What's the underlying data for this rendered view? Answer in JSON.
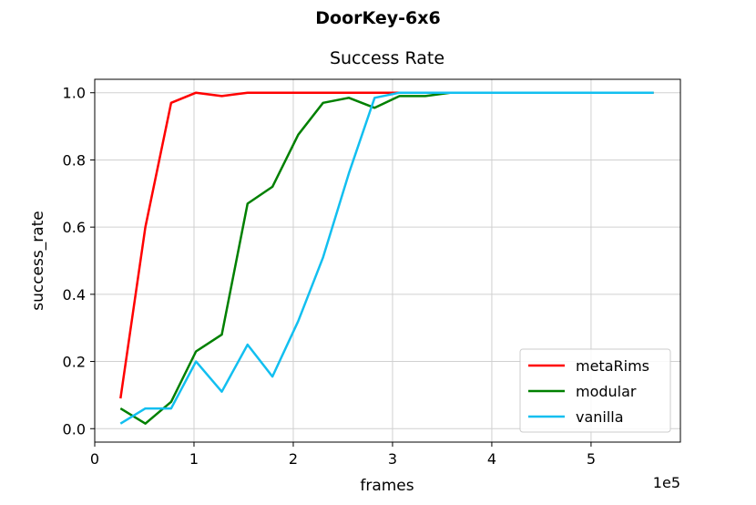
{
  "suptitle": "DoorKey-6x6",
  "chart_data": {
    "type": "line",
    "title": "Success Rate",
    "xlabel": "frames",
    "ylabel": "success_rate",
    "x_offset_text": "1e5",
    "xlim": [
      0,
      5.9
    ],
    "ylim": [
      -0.04,
      1.04
    ],
    "xticks": [
      0,
      1,
      2,
      3,
      4,
      5
    ],
    "xtick_labels": [
      "0",
      "1",
      "2",
      "3",
      "4",
      "5"
    ],
    "yticks": [
      0.0,
      0.2,
      0.4,
      0.6,
      0.8,
      1.0
    ],
    "ytick_labels": [
      "0.0",
      "0.2",
      "0.4",
      "0.6",
      "0.8",
      "1.0"
    ],
    "grid": true,
    "legend_position": "lower-right",
    "series": [
      {
        "name": "metaRims",
        "color": "#ff0000",
        "x": [
          0.26,
          0.51,
          0.77,
          1.02,
          1.28,
          1.54,
          1.79,
          2.05,
          2.3,
          2.56,
          2.82,
          3.07,
          3.33,
          3.58,
          3.84,
          4.1,
          4.35,
          4.61,
          4.86,
          5.12,
          5.38,
          5.63
        ],
        "y": [
          0.09,
          0.6,
          0.97,
          1.0,
          0.99,
          1.0,
          1.0,
          1.0,
          1.0,
          1.0,
          1.0,
          1.0,
          1.0,
          1.0,
          1.0,
          1.0,
          1.0,
          1.0,
          1.0,
          1.0,
          1.0,
          1.0
        ]
      },
      {
        "name": "modular",
        "color": "#008000",
        "x": [
          0.26,
          0.51,
          0.77,
          1.02,
          1.28,
          1.54,
          1.79,
          2.05,
          2.3,
          2.56,
          2.82,
          3.07,
          3.33,
          3.58,
          3.84,
          4.1,
          4.35,
          4.61,
          4.86,
          5.12,
          5.38,
          5.63
        ],
        "y": [
          0.06,
          0.015,
          0.08,
          0.23,
          0.28,
          0.67,
          0.72,
          0.875,
          0.97,
          0.985,
          0.955,
          0.99,
          0.99,
          1.0,
          1.0,
          1.0,
          1.0,
          1.0,
          1.0,
          1.0,
          1.0,
          1.0
        ]
      },
      {
        "name": "vanilla",
        "color": "#12bff0",
        "x": [
          0.26,
          0.51,
          0.77,
          1.02,
          1.28,
          1.54,
          1.79,
          2.05,
          2.3,
          2.56,
          2.82,
          3.07,
          3.33,
          3.58,
          3.84,
          4.1,
          4.35,
          4.61,
          4.86,
          5.12,
          5.38,
          5.63
        ],
        "y": [
          0.015,
          0.06,
          0.06,
          0.2,
          0.11,
          0.25,
          0.155,
          0.32,
          0.51,
          0.76,
          0.985,
          1.0,
          1.0,
          1.0,
          1.0,
          1.0,
          1.0,
          1.0,
          1.0,
          1.0,
          1.0,
          1.0
        ]
      }
    ]
  }
}
